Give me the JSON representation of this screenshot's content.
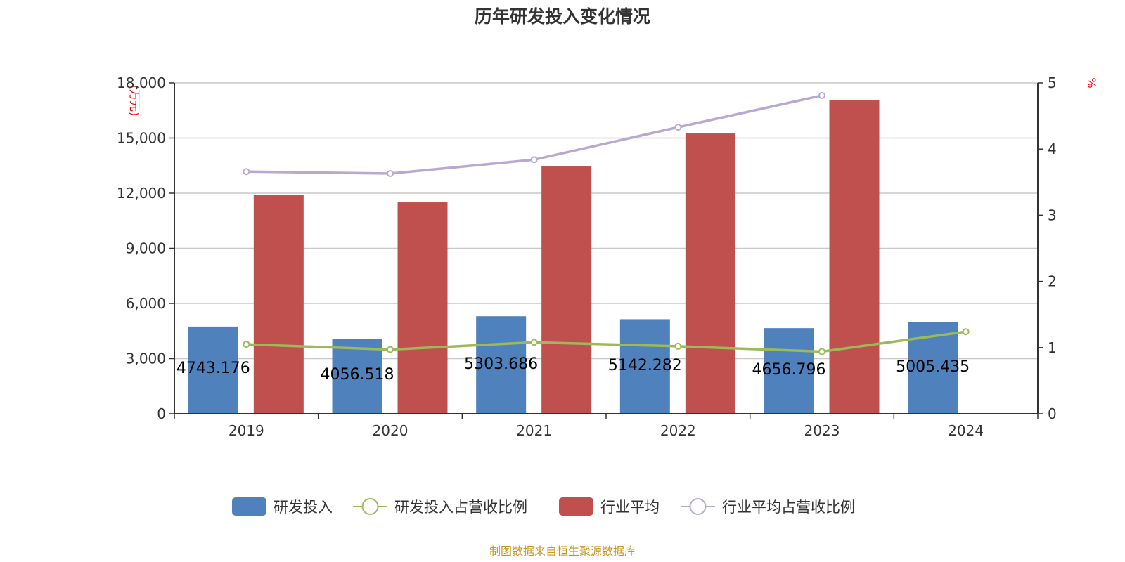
{
  "chart_data": {
    "type": "bar",
    "title": "历年研发投入变化情况",
    "categories": [
      "2019",
      "2020",
      "2021",
      "2022",
      "2023",
      "2024"
    ],
    "ylabel_left": "(万元)",
    "ylabel_right": "%",
    "ylim_left": [
      0,
      18000
    ],
    "yticks_left": [
      "0",
      "3,000",
      "6,000",
      "9,000",
      "12,000",
      "15,000",
      "18,000"
    ],
    "ylim_right": [
      0,
      5
    ],
    "yticks_right": [
      "0",
      "1",
      "2",
      "3",
      "4",
      "5"
    ],
    "grid": true,
    "legend_position": "bottom",
    "series": [
      {
        "name": "研发投入",
        "type": "bar",
        "color": "#4f81bd",
        "values": [
          4743.176,
          4056.518,
          5303.686,
          5142.282,
          4656.796,
          5005.435
        ],
        "labels": [
          "4743.176",
          "4056.518",
          "5303.686",
          "5142.282",
          "4656.796",
          "5005.435"
        ]
      },
      {
        "name": "研发投入占营收比例",
        "type": "line",
        "axis": "right",
        "color": "#9bbb59",
        "values": [
          1.05,
          0.97,
          1.08,
          1.02,
          0.94,
          1.24
        ]
      },
      {
        "name": "行业平均",
        "type": "bar",
        "color": "#c0504d",
        "values": [
          11885,
          11502,
          13451,
          15247,
          17081,
          null
        ]
      },
      {
        "name": "行业平均占营收比例",
        "type": "line",
        "axis": "right",
        "color": "#b7a9cf",
        "values": [
          3.66,
          3.63,
          3.84,
          4.33,
          4.81,
          null
        ]
      }
    ]
  },
  "footer": {
    "source": "制图数据来自恒生聚源数据库"
  }
}
